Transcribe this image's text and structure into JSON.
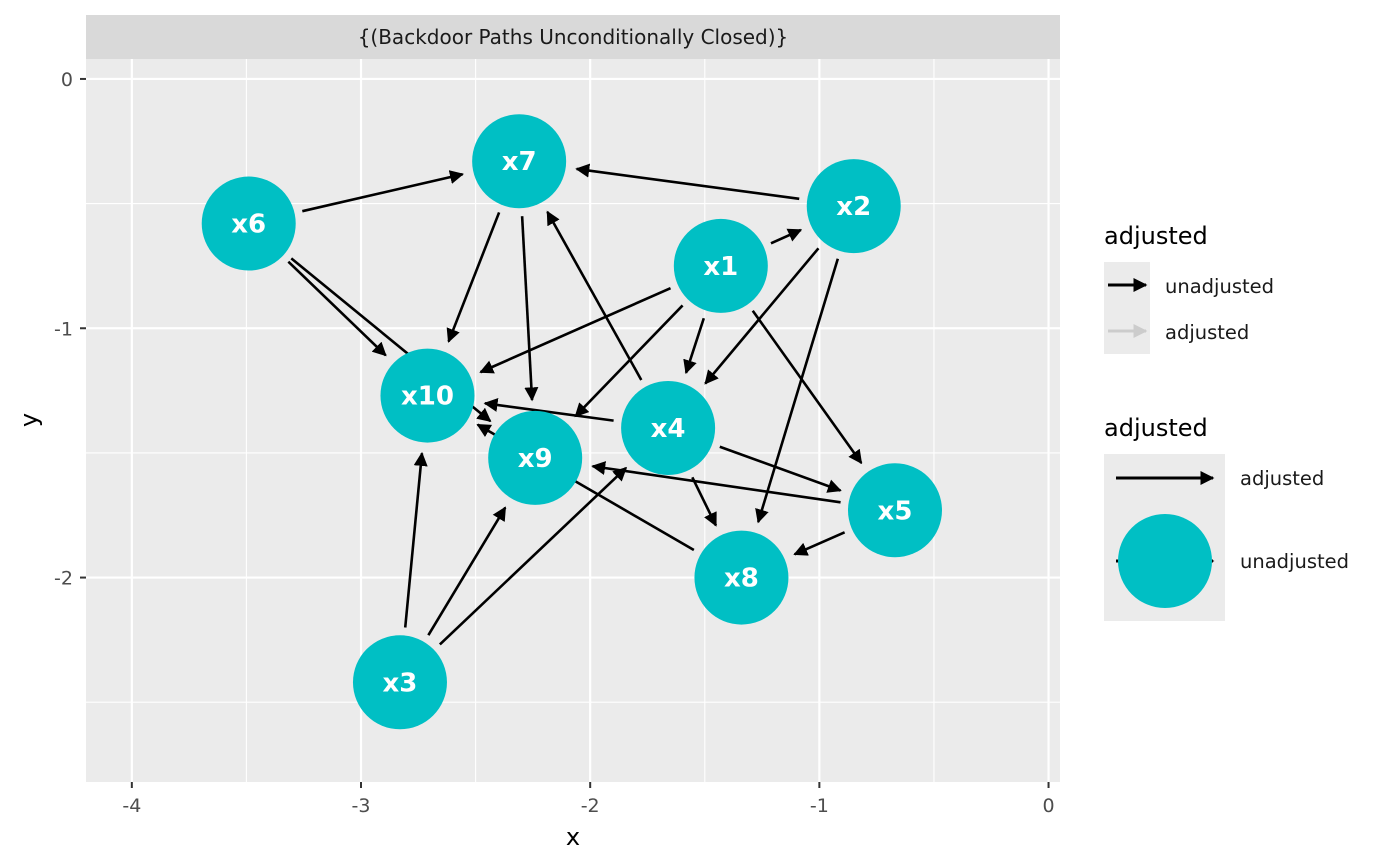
{
  "chart_data": {
    "type": "dag",
    "facet_label": "{(Backdoor Paths Unconditionally Closed)}",
    "xlabel": "x",
    "ylabel": "y",
    "xlim": [
      -4.2,
      0.05
    ],
    "ylim": [
      -2.82,
      0.08
    ],
    "x_ticks": [
      {
        "value": -4,
        "label": "-4"
      },
      {
        "value": -3,
        "label": "-3"
      },
      {
        "value": -2,
        "label": "-2"
      },
      {
        "value": -1,
        "label": "-1"
      },
      {
        "value": 0,
        "label": "0"
      }
    ],
    "y_ticks": [
      {
        "value": 0,
        "label": "0"
      },
      {
        "value": -1,
        "label": "-1"
      },
      {
        "value": -2,
        "label": "-2"
      }
    ],
    "nodes": [
      {
        "name": "x1",
        "x": -1.43,
        "y": -0.75
      },
      {
        "name": "x2",
        "x": -0.85,
        "y": -0.51
      },
      {
        "name": "x3",
        "x": -2.83,
        "y": -2.42
      },
      {
        "name": "x4",
        "x": -1.66,
        "y": -1.4
      },
      {
        "name": "x5",
        "x": -0.67,
        "y": -1.73
      },
      {
        "name": "x6",
        "x": -3.49,
        "y": -0.58
      },
      {
        "name": "x7",
        "x": -2.31,
        "y": -0.33
      },
      {
        "name": "x8",
        "x": -1.34,
        "y": -2.0
      },
      {
        "name": "x9",
        "x": -2.24,
        "y": -1.52
      },
      {
        "name": "x10",
        "x": -2.71,
        "y": -1.27
      }
    ],
    "edges": [
      {
        "from": "x6",
        "to": "x7"
      },
      {
        "from": "x6",
        "to": "x10"
      },
      {
        "from": "x6",
        "to": "x9"
      },
      {
        "from": "x2",
        "to": "x7"
      },
      {
        "from": "x2",
        "to": "x4"
      },
      {
        "from": "x2",
        "to": "x8"
      },
      {
        "from": "x7",
        "to": "x10"
      },
      {
        "from": "x7",
        "to": "x9"
      },
      {
        "from": "x1",
        "to": "x2"
      },
      {
        "from": "x1",
        "to": "x10"
      },
      {
        "from": "x1",
        "to": "x9"
      },
      {
        "from": "x1",
        "to": "x4"
      },
      {
        "from": "x1",
        "to": "x5"
      },
      {
        "from": "x4",
        "to": "x7"
      },
      {
        "from": "x4",
        "to": "x10"
      },
      {
        "from": "x4",
        "to": "x5"
      },
      {
        "from": "x4",
        "to": "x8"
      },
      {
        "from": "x5",
        "to": "x9"
      },
      {
        "from": "x5",
        "to": "x8"
      },
      {
        "from": "x8",
        "to": "x10"
      },
      {
        "from": "x3",
        "to": "x10"
      },
      {
        "from": "x3",
        "to": "x9"
      },
      {
        "from": "x3",
        "to": "x4"
      }
    ],
    "node_color": "#00BFC4",
    "edge_color": "#000000",
    "panel_background": "#EBEBEB",
    "strip_background": "#D9D9D9",
    "grid": true,
    "legend_position": "right",
    "legends": [
      {
        "title": "adjusted",
        "items": [
          {
            "label": "unadjusted",
            "color": "#000000"
          },
          {
            "label": "adjusted",
            "color": "#CCCCCC"
          }
        ]
      },
      {
        "title": "adjusted",
        "items": [
          {
            "label": "adjusted",
            "color": "#000000"
          },
          {
            "label": "unadjusted",
            "color": "#00BFC4"
          }
        ]
      }
    ]
  }
}
